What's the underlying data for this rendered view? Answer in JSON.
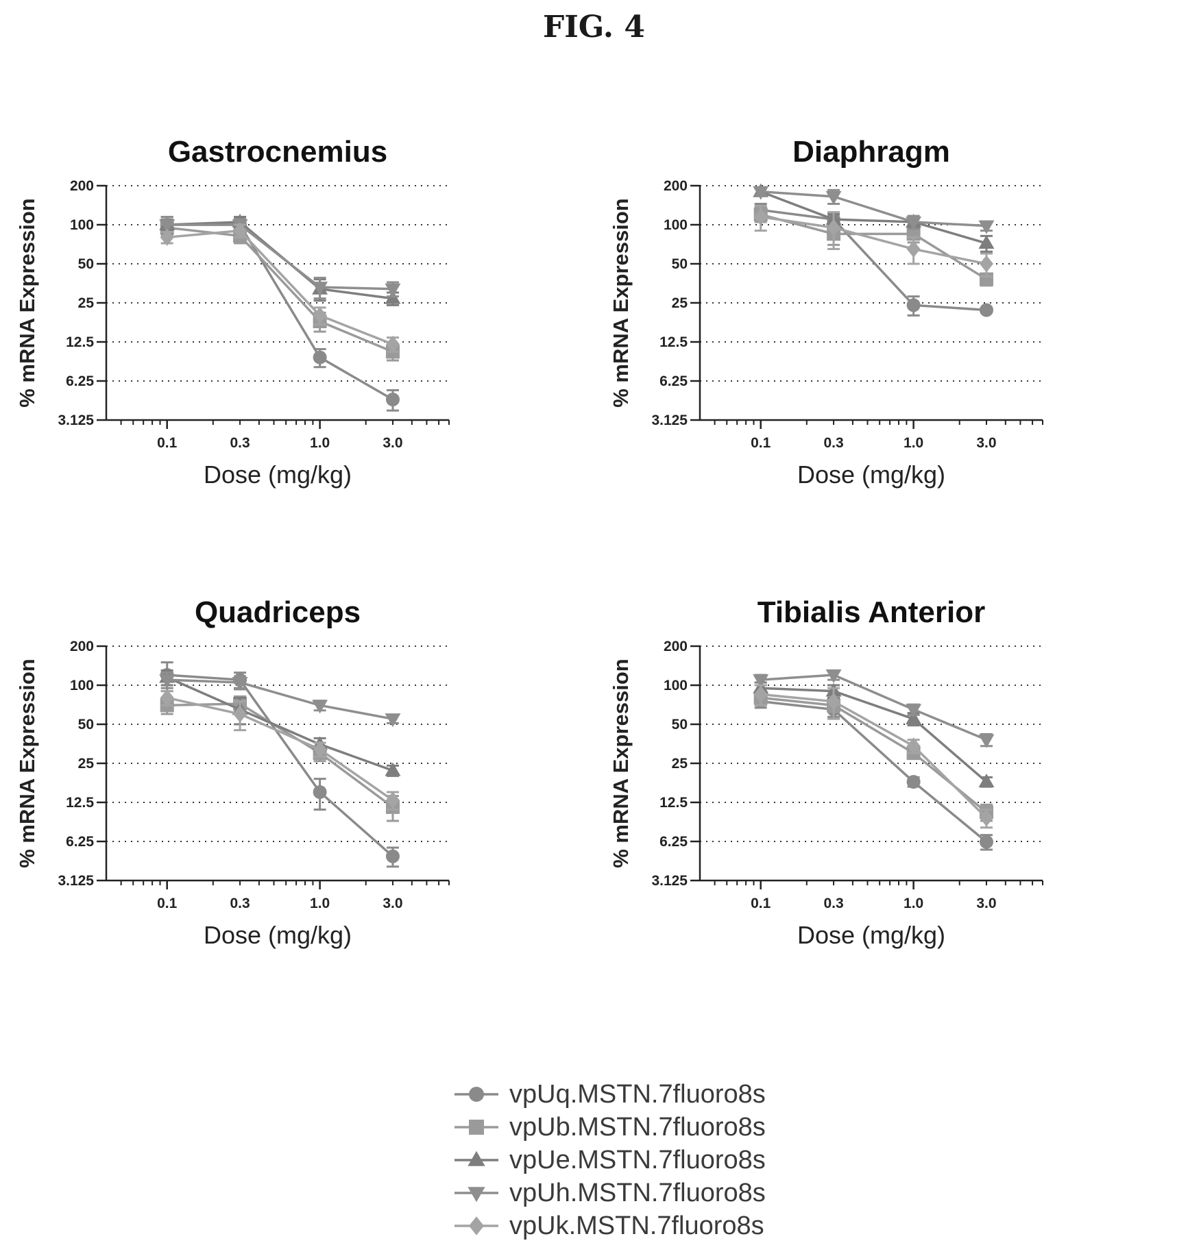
{
  "figure_title": "FIG. 4",
  "colors": {
    "series": [
      "#8a8a8a",
      "#9a9a9a",
      "#7e7e7e",
      "#8e8e8e",
      "#a4a4a4"
    ],
    "axis": "#222222",
    "grid": "#333333"
  },
  "chart_data": [
    {
      "type": "line",
      "title": "Gastrocnemius",
      "xlabel": "Dose (mg/kg)",
      "ylabel": "% mRNA Expression",
      "x": [
        0.1,
        0.3,
        1.0,
        3.0
      ],
      "x_tick_labels": [
        "0.1",
        "0.3",
        "1.0",
        "3.0"
      ],
      "y_ticks": [
        3.125,
        6.25,
        12.5,
        25,
        50,
        100,
        200
      ],
      "y_tick_labels": [
        "3.125",
        "6.25",
        "12.5",
        "25",
        "50",
        "100",
        "200"
      ],
      "y_scale": "log2",
      "ylim": [
        3.125,
        200
      ],
      "grid": "horizontal-dotted",
      "series": [
        {
          "name": "vpUq.MSTN.7fluoro8s",
          "marker": "circle",
          "values": [
            100,
            100,
            9.5,
            4.5
          ],
          "err": [
            15,
            12,
            1.5,
            0.8
          ]
        },
        {
          "name": "vpUb.MSTN.7fluoro8s",
          "marker": "square",
          "values": [
            95,
            82,
            18,
            10.5
          ],
          "err": [
            12,
            10,
            3,
            1.5
          ]
        },
        {
          "name": "vpUe.MSTN.7fluoro8s",
          "marker": "triangle-up",
          "values": [
            100,
            105,
            32,
            27
          ],
          "err": [
            10,
            10,
            6,
            3
          ]
        },
        {
          "name": "vpUh.MSTN.7fluoro8s",
          "marker": "triangle-down",
          "values": [
            100,
            100,
            33,
            32
          ],
          "err": [
            15,
            10,
            6,
            4
          ]
        },
        {
          "name": "vpUk.MSTN.7fluoro8s",
          "marker": "diamond",
          "values": [
            80,
            90,
            20,
            12
          ],
          "err": [
            8,
            10,
            3,
            1.5
          ]
        }
      ]
    },
    {
      "type": "line",
      "title": "Diaphragm",
      "xlabel": "Dose (mg/kg)",
      "ylabel": "% mRNA Expression",
      "x": [
        0.1,
        0.3,
        1.0,
        3.0
      ],
      "x_tick_labels": [
        "0.1",
        "0.3",
        "1.0",
        "3.0"
      ],
      "y_ticks": [
        3.125,
        6.25,
        12.5,
        25,
        50,
        100,
        200
      ],
      "y_tick_labels": [
        "3.125",
        "6.25",
        "12.5",
        "25",
        "50",
        "100",
        "200"
      ],
      "y_scale": "log2",
      "ylim": [
        3.125,
        200
      ],
      "grid": "horizontal-dotted",
      "series": [
        {
          "name": "vpUq.MSTN.7fluoro8s",
          "marker": "circle",
          "values": [
            130,
            110,
            24,
            22
          ],
          "err": [
            15,
            12,
            4,
            1
          ]
        },
        {
          "name": "vpUb.MSTN.7fluoro8s",
          "marker": "square",
          "values": [
            120,
            85,
            85,
            38
          ],
          "err": [
            15,
            15,
            12,
            4
          ]
        },
        {
          "name": "vpUe.MSTN.7fluoro8s",
          "marker": "triangle-up",
          "values": [
            180,
            110,
            105,
            72
          ],
          "err": [
            10,
            10,
            10,
            10
          ]
        },
        {
          "name": "vpUh.MSTN.7fluoro8s",
          "marker": "triangle-down",
          "values": [
            180,
            165,
            105,
            98
          ],
          "err": [
            10,
            20,
            12,
            8
          ]
        },
        {
          "name": "vpUk.MSTN.7fluoro8s",
          "marker": "diamond",
          "values": [
            115,
            95,
            65,
            50
          ],
          "err": [
            25,
            30,
            15,
            10
          ]
        }
      ]
    },
    {
      "type": "line",
      "title": "Quadriceps",
      "xlabel": "Dose (mg/kg)",
      "ylabel": "% mRNA Expression",
      "x": [
        0.1,
        0.3,
        1.0,
        3.0
      ],
      "x_tick_labels": [
        "0.1",
        "0.3",
        "1.0",
        "3.0"
      ],
      "y_ticks": [
        3.125,
        6.25,
        12.5,
        25,
        50,
        100,
        200
      ],
      "y_tick_labels": [
        "3.125",
        "6.25",
        "12.5",
        "25",
        "50",
        "100",
        "200"
      ],
      "y_scale": "log2",
      "ylim": [
        3.125,
        200
      ],
      "grid": "horizontal-dotted",
      "series": [
        {
          "name": "vpUq.MSTN.7fluoro8s",
          "marker": "circle",
          "values": [
            120,
            110,
            15,
            4.8
          ],
          "err": [
            30,
            15,
            4,
            0.8
          ]
        },
        {
          "name": "vpUb.MSTN.7fluoro8s",
          "marker": "square",
          "values": [
            70,
            72,
            30,
            11.5
          ],
          "err": [
            10,
            10,
            4,
            2.5
          ]
        },
        {
          "name": "vpUe.MSTN.7fluoro8s",
          "marker": "triangle-up",
          "values": [
            115,
            65,
            35,
            22
          ],
          "err": [
            15,
            15,
            4,
            2
          ]
        },
        {
          "name": "vpUh.MSTN.7fluoro8s",
          "marker": "triangle-down",
          "values": [
            110,
            105,
            70,
            55
          ],
          "err": [
            15,
            12,
            6,
            4
          ]
        },
        {
          "name": "vpUk.MSTN.7fluoro8s",
          "marker": "diamond",
          "values": [
            80,
            60,
            32,
            13
          ],
          "err": [
            10,
            15,
            4,
            2
          ]
        }
      ]
    },
    {
      "type": "line",
      "title": "Tibialis Anterior",
      "xlabel": "Dose (mg/kg)",
      "ylabel": "% mRNA Expression",
      "x": [
        0.1,
        0.3,
        1.0,
        3.0
      ],
      "x_tick_labels": [
        "0.1",
        "0.3",
        "1.0",
        "3.0"
      ],
      "y_ticks": [
        3.125,
        6.25,
        12.5,
        25,
        50,
        100,
        200
      ],
      "y_tick_labels": [
        "3.125",
        "6.25",
        "12.5",
        "25",
        "50",
        "100",
        "200"
      ],
      "y_scale": "log2",
      "ylim": [
        3.125,
        200
      ],
      "grid": "horizontal-dotted",
      "series": [
        {
          "name": "vpUq.MSTN.7fluoro8s",
          "marker": "circle",
          "values": [
            75,
            65,
            18,
            6.2
          ],
          "err": [
            8,
            8,
            1.5,
            0.8
          ]
        },
        {
          "name": "vpUb.MSTN.7fluoro8s",
          "marker": "square",
          "values": [
            80,
            70,
            30,
            10.5
          ],
          "err": [
            10,
            8,
            3,
            1.5
          ]
        },
        {
          "name": "vpUe.MSTN.7fluoro8s",
          "marker": "triangle-up",
          "values": [
            95,
            90,
            55,
            18
          ],
          "err": [
            10,
            10,
            6,
            1.5
          ]
        },
        {
          "name": "vpUh.MSTN.7fluoro8s",
          "marker": "triangle-down",
          "values": [
            110,
            120,
            65,
            38
          ],
          "err": [
            10,
            10,
            6,
            4
          ]
        },
        {
          "name": "vpUk.MSTN.7fluoro8s",
          "marker": "diamond",
          "values": [
            85,
            75,
            34,
            9.5
          ],
          "err": [
            15,
            20,
            4,
            1.5
          ]
        }
      ]
    }
  ],
  "legend": {
    "placement": "bottom-center",
    "items": [
      {
        "label": "vpUq.MSTN.7fluoro8s",
        "marker": "circle"
      },
      {
        "label": "vpUb.MSTN.7fluoro8s",
        "marker": "square"
      },
      {
        "label": "vpUe.MSTN.7fluoro8s",
        "marker": "triangle-up"
      },
      {
        "label": "vpUh.MSTN.7fluoro8s",
        "marker": "triangle-down"
      },
      {
        "label": "vpUk.MSTN.7fluoro8s",
        "marker": "diamond"
      }
    ]
  }
}
